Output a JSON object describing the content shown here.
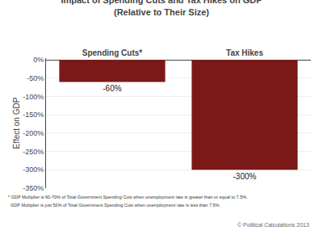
{
  "chart_data": {
    "type": "bar",
    "title": "Impact of Spending Cuts and Tax Hikes on GDP",
    "subtitle": "(Relative to Their Size)",
    "categories": [
      "Spending Cuts*",
      "Tax Hikes"
    ],
    "values": [
      -60,
      -300
    ],
    "value_labels": [
      "-60%",
      "-300%"
    ],
    "data_labels": true,
    "color": "#7B1818",
    "ylabel": "Effect on GDP",
    "ylim": [
      -350,
      5
    ],
    "yticks": [
      {
        "value": 0,
        "label": "0%"
      },
      {
        "value": -50,
        "label": "-50%"
      },
      {
        "value": -100,
        "label": "-100%"
      },
      {
        "value": -150,
        "label": "-150%"
      },
      {
        "value": -200,
        "label": "-200%"
      },
      {
        "value": -250,
        "label": "-250%"
      },
      {
        "value": -300,
        "label": "-300%"
      },
      {
        "value": -350,
        "label": "-350%"
      }
    ],
    "grid": true,
    "annotations": [
      "* GDP Multiplier is 60-70% of Total Government Spending Cuts when unemployment rate is greater than or equal to 7.5%.",
      "  GDP Multiplier is just 50% of Total Government Spending Cuts when unemployment rate is less than 7.5%.",
      "© Political Calculations 2013"
    ]
  }
}
